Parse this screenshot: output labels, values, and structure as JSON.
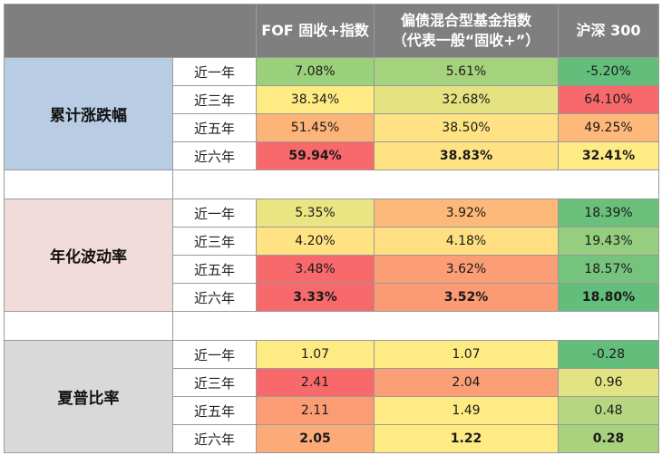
{
  "header": {
    "col1": "FOF 固收+指数",
    "col2_line1": "偏债混合型基金指数",
    "col2_line2": "（代表一般“固收+”）",
    "col3": "沪深 300"
  },
  "groups": [
    {
      "label": "累计涨跌幅",
      "color": "#b8cce4",
      "rows": [
        {
          "period": "近一年",
          "fof": "7.08%",
          "mix": "5.61%",
          "hs": "-5.20%"
        },
        {
          "period": "近三年",
          "fof": "38.34%",
          "mix": "32.68%",
          "hs": "64.10%"
        },
        {
          "period": "近五年",
          "fof": "51.45%",
          "mix": "38.50%",
          "hs": "49.25%"
        },
        {
          "period": "近六年",
          "fof": "59.94%",
          "mix": "38.83%",
          "hs": "32.41%"
        }
      ]
    },
    {
      "label": "年化波动率",
      "color": "#f2dcdb",
      "rows": [
        {
          "period": "近一年",
          "fof": "5.35%",
          "mix": "3.92%",
          "hs": "18.39%"
        },
        {
          "period": "近三年",
          "fof": "4.20%",
          "mix": "4.18%",
          "hs": "19.43%"
        },
        {
          "period": "近五年",
          "fof": "3.48%",
          "mix": "3.62%",
          "hs": "18.57%"
        },
        {
          "period": "近六年",
          "fof": "3.33%",
          "mix": "3.52%",
          "hs": "18.80%"
        }
      ]
    },
    {
      "label": "夏普比率",
      "color": "#d9d9d9",
      "rows": [
        {
          "period": "近一年",
          "fof": "1.07",
          "mix": "1.07",
          "hs": "-0.28"
        },
        {
          "period": "近三年",
          "fof": "2.41",
          "mix": "2.04",
          "hs": "0.96"
        },
        {
          "period": "近五年",
          "fof": "2.11",
          "mix": "1.49",
          "hs": "0.48"
        },
        {
          "period": "近六年",
          "fof": "2.05",
          "mix": "1.22",
          "hs": "0.28"
        }
      ]
    }
  ],
  "cell_colors": {
    "g0": [
      [
        "#9bd07c",
        "#a5d27d",
        "#63be7b"
      ],
      [
        "#ffeb84",
        "#e5e282",
        "#f8696b"
      ],
      [
        "#fcb479",
        "#ffe283",
        "#fdb87a"
      ],
      [
        "#f8696b",
        "#ffe383",
        "#ffeb84"
      ]
    ],
    "g1": [
      [
        "#ebe483",
        "#fcb979",
        "#6ac07b"
      ],
      [
        "#ffe382",
        "#ffdf82",
        "#95ce7f"
      ],
      [
        "#f8696b",
        "#fb9d75",
        "#75c37c"
      ],
      [
        "#f8696b",
        "#fb9b74",
        "#63be7b"
      ]
    ],
    "g2": [
      [
        "#ffeb84",
        "#ffeb84",
        "#63be7b"
      ],
      [
        "#f8696b",
        "#fba076",
        "#e2e383"
      ],
      [
        "#fb9c74",
        "#ffea84",
        "#b5d780"
      ],
      [
        "#fcaa77",
        "#ffeb84",
        "#a9d27f"
      ]
    ]
  }
}
